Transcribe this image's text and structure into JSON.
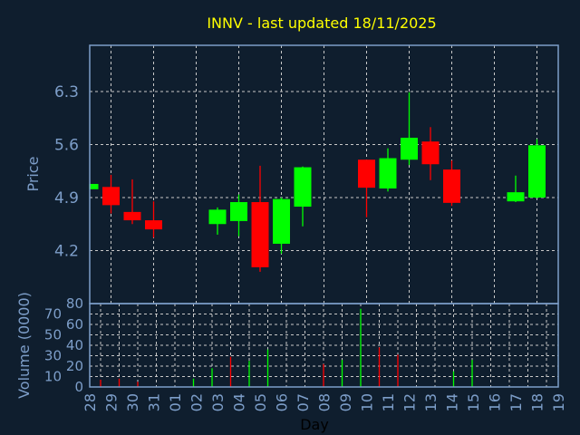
{
  "chart_data": [
    {
      "type": "candlestick",
      "title": "INNV - last updated 18/11/2025",
      "ylabel": "Price",
      "ylim": [
        3.75,
        6.89
      ],
      "yticks": [
        "4.2",
        "4.9",
        "5.6",
        "6.3"
      ],
      "grid": true,
      "colors": {
        "up": "#00ff00",
        "down": "#ff0000",
        "title": "#ffff00",
        "axis": "#7d9ec9",
        "background": "#0f1e2e"
      },
      "x_labels": [
        "28",
        "29",
        "30",
        "31",
        "01",
        "02",
        "03",
        "04",
        "05",
        "06",
        "07",
        "08",
        "09",
        "10",
        "11",
        "12",
        "13",
        "14",
        "15",
        "16",
        "17",
        "18",
        "19"
      ],
      "candles": [
        {
          "day": "28",
          "open": 5.01,
          "high": 5.08,
          "low": 5.01,
          "close": 5.08
        },
        {
          "day": "29",
          "open": 5.04,
          "high": 5.2,
          "low": 4.69,
          "close": 4.8
        },
        {
          "day": "30",
          "open": 4.71,
          "high": 5.14,
          "low": 4.55,
          "close": 4.6
        },
        {
          "day": "31",
          "open": 4.6,
          "high": 4.85,
          "low": 4.37,
          "close": 4.48
        },
        {
          "day": "03",
          "open": 4.55,
          "high": 4.77,
          "low": 4.41,
          "close": 4.74
        },
        {
          "day": "04",
          "open": 4.59,
          "high": 4.94,
          "low": 4.39,
          "close": 4.84
        },
        {
          "day": "05",
          "open": 4.84,
          "high": 5.32,
          "low": 3.92,
          "close": 3.98
        },
        {
          "day": "06",
          "open": 4.29,
          "high": 4.9,
          "low": 4.16,
          "close": 4.88
        },
        {
          "day": "07",
          "open": 4.78,
          "high": 5.31,
          "low": 4.52,
          "close": 5.3
        },
        {
          "day": "10",
          "open": 5.4,
          "high": 5.4,
          "low": 4.64,
          "close": 5.03
        },
        {
          "day": "11",
          "open": 5.02,
          "high": 5.55,
          "low": 4.98,
          "close": 5.42
        },
        {
          "day": "12",
          "open": 5.4,
          "high": 6.29,
          "low": 5.33,
          "close": 5.69
        },
        {
          "day": "13",
          "open": 5.64,
          "high": 5.83,
          "low": 5.13,
          "close": 5.34
        },
        {
          "day": "14",
          "open": 5.27,
          "high": 5.39,
          "low": 4.79,
          "close": 4.83
        },
        {
          "day": "17",
          "open": 4.85,
          "high": 5.19,
          "low": 4.84,
          "close": 4.97
        },
        {
          "day": "18",
          "open": 4.9,
          "high": 5.67,
          "low": 4.89,
          "close": 5.59
        }
      ]
    },
    {
      "type": "bar",
      "ylabel": "Volume (0000)",
      "xlabel": "Day",
      "ylim": [
        0,
        80
      ],
      "yticks": [
        "0",
        "10",
        "20",
        "30",
        "40",
        "50",
        "60",
        "70",
        "80"
      ],
      "grid": true,
      "bars": [
        {
          "day": "29",
          "value": 7,
          "dir": "down"
        },
        {
          "day": "30",
          "value": 8,
          "dir": "down"
        },
        {
          "day": "31",
          "value": 5,
          "dir": "down"
        },
        {
          "day": "03",
          "value": 8,
          "dir": "up"
        },
        {
          "day": "04",
          "value": 18,
          "dir": "up"
        },
        {
          "day": "05",
          "value": 29,
          "dir": "down"
        },
        {
          "day": "06",
          "value": 25,
          "dir": "up"
        },
        {
          "day": "07",
          "value": 36,
          "dir": "up"
        },
        {
          "day": "10",
          "value": 22,
          "dir": "down"
        },
        {
          "day": "11",
          "value": 26,
          "dir": "up"
        },
        {
          "day": "12",
          "value": 75,
          "dir": "up"
        },
        {
          "day": "13",
          "value": 38,
          "dir": "down"
        },
        {
          "day": "14",
          "value": 31,
          "dir": "down"
        },
        {
          "day": "17",
          "value": 15,
          "dir": "up"
        },
        {
          "day": "18",
          "value": 26,
          "dir": "up"
        }
      ]
    }
  ]
}
